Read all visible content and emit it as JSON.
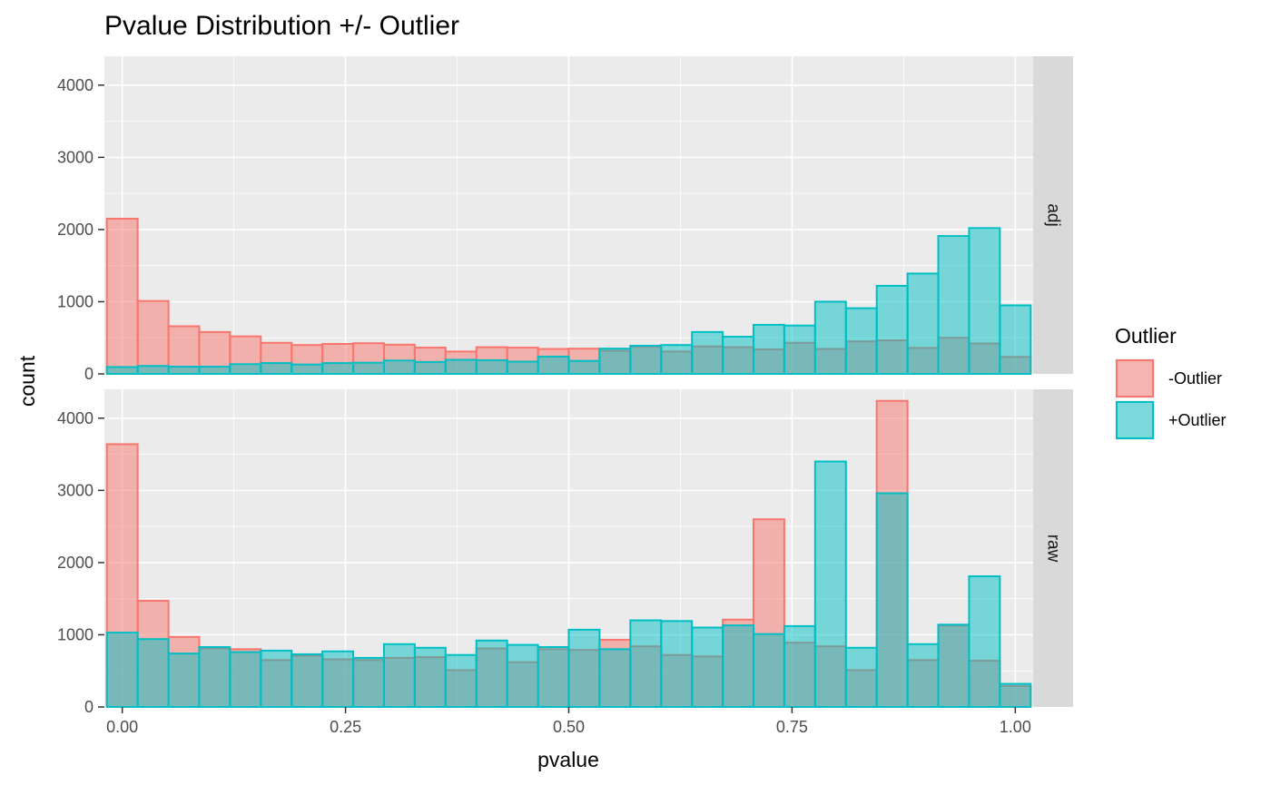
{
  "chart_data": {
    "type": "bar",
    "subtype": "faceted-overlaid-histogram",
    "title": "Pvalue Distribution +/- Outlier",
    "xlabel": "pvalue",
    "ylabel": "count",
    "xlim": [
      -0.02,
      1.02
    ],
    "ylim": [
      0,
      4400
    ],
    "x_ticks": [
      0,
      0.25,
      0.5,
      0.75,
      1.0
    ],
    "x_tick_labels": [
      "0.00",
      "0.25",
      "0.50",
      "0.75",
      "1.00"
    ],
    "y_ticks": [
      0,
      1000,
      2000,
      3000,
      4000
    ],
    "y_tick_labels": [
      "0",
      "1000",
      "2000",
      "3000",
      "4000"
    ],
    "bin_width": 0.0345,
    "bin_centers": [
      0.0,
      0.0345,
      0.069,
      0.1034,
      0.1379,
      0.1724,
      0.2069,
      0.2414,
      0.2759,
      0.3103,
      0.3448,
      0.3793,
      0.4138,
      0.4483,
      0.4828,
      0.5172,
      0.5517,
      0.5862,
      0.6207,
      0.6552,
      0.6897,
      0.7241,
      0.7586,
      0.7931,
      0.8276,
      0.8621,
      0.8966,
      0.931,
      0.9655,
      1.0
    ],
    "legend": {
      "title": "Outlier",
      "position": "right",
      "items": [
        {
          "label": "-Outlier",
          "fill": "#F8766D",
          "stroke": "#F8766D"
        },
        {
          "label": "+Outlier",
          "fill": "#00BFC4",
          "stroke": "#00BFC4"
        }
      ]
    },
    "grid": true,
    "facets": [
      {
        "label": "adj",
        "series": [
          {
            "name": "-Outlier",
            "values": [
              2150,
              1010,
              660,
              580,
              520,
              430,
              400,
              415,
              425,
              405,
              365,
              310,
              370,
              365,
              345,
              350,
              320,
              375,
              310,
              380,
              370,
              340,
              430,
              345,
              450,
              465,
              360,
              500,
              420,
              235
            ]
          },
          {
            "name": "+Outlier",
            "values": [
              95,
              110,
              100,
              100,
              135,
              150,
              130,
              150,
              155,
              185,
              165,
              195,
              190,
              170,
              240,
              180,
              350,
              390,
              400,
              580,
              515,
              680,
              670,
              1000,
              910,
              1220,
              1390,
              1910,
              2020,
              950
            ]
          }
        ]
      },
      {
        "label": "raw",
        "series": [
          {
            "name": "-Outlier",
            "values": [
              3640,
              1470,
              970,
              810,
              800,
              650,
              710,
              660,
              650,
              680,
              690,
              510,
              810,
              620,
              800,
              790,
              930,
              840,
              720,
              700,
              1210,
              2600,
              890,
              840,
              510,
              4240,
              650,
              1130,
              640,
              290
            ]
          },
          {
            "name": "+Outlier",
            "values": [
              1030,
              940,
              740,
              830,
              760,
              780,
              730,
              770,
              680,
              870,
              820,
              720,
              920,
              860,
              830,
              1070,
              800,
              1200,
              1190,
              1100,
              1130,
              1010,
              1120,
              3400,
              820,
              2960,
              870,
              1140,
              1810,
              320
            ]
          }
        ]
      }
    ]
  }
}
